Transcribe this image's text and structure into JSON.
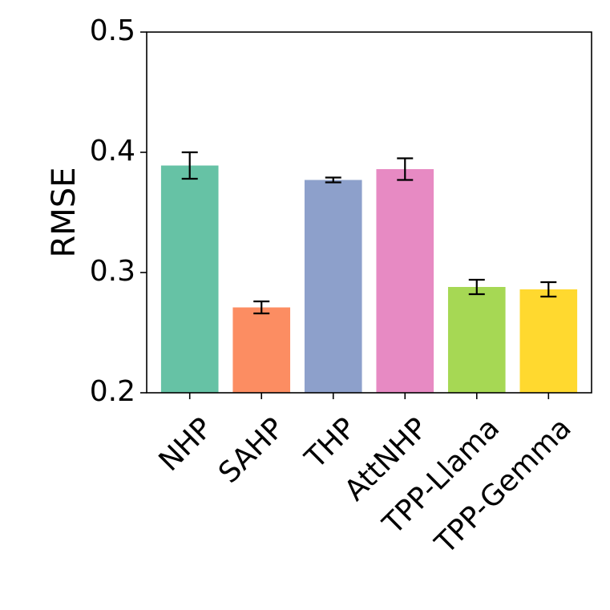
{
  "chart_data": {
    "type": "bar",
    "title": "",
    "xlabel": "",
    "ylabel": "RMSE",
    "ylim": [
      0.2,
      0.5
    ],
    "yticks": [
      "0.2",
      "0.3",
      "0.4",
      "0.5"
    ],
    "grid": false,
    "categories": [
      "NHP",
      "SAHP",
      "THP",
      "AttNHP",
      "TPP-Llama",
      "TPP-Gemma"
    ],
    "values": [
      0.389,
      0.271,
      0.377,
      0.386,
      0.288,
      0.286
    ],
    "errors": [
      0.011,
      0.005,
      0.002,
      0.009,
      0.006,
      0.006
    ],
    "colors": [
      "#66c2a5",
      "#fc8d62",
      "#8da0cb",
      "#e78ac3",
      "#a6d854",
      "#ffd92f"
    ]
  }
}
